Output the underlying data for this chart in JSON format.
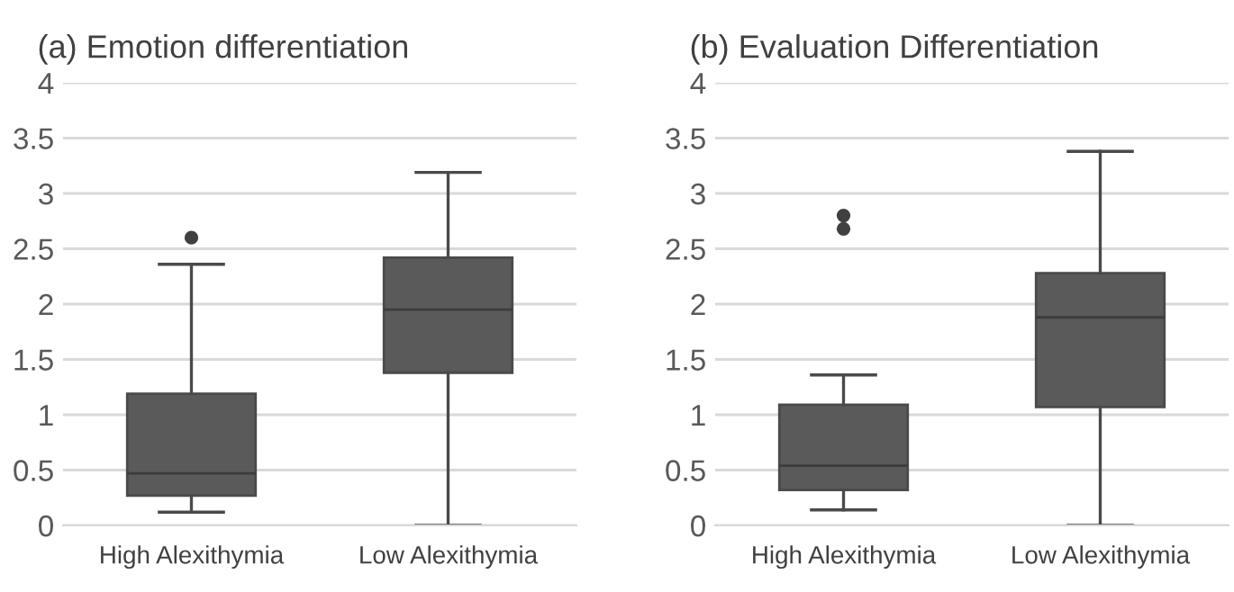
{
  "chart_data": [
    {
      "type": "box",
      "title": "(a) Emotion differentiation",
      "categories": [
        "High Alexithymia",
        "Low Alexithymia"
      ],
      "color": "#5a5a5a",
      "boxes": [
        {
          "low": 0.12,
          "q1": 0.27,
          "median": 0.47,
          "q3": 1.19,
          "high": 2.36,
          "outliers": [
            2.6
          ]
        },
        {
          "low": 0,
          "q1": 1.38,
          "median": 1.95,
          "q3": 2.42,
          "high": 3.19
        }
      ],
      "ylim": [
        0,
        4
      ],
      "yticks": [
        0,
        0.5,
        1,
        1.5,
        2,
        2.5,
        3,
        3.5,
        4
      ],
      "grid": "y"
    },
    {
      "type": "box",
      "title": "(b) Evaluation Differentiation",
      "categories": [
        "High Alexithymia",
        "Low Alexithymia"
      ],
      "color": "#5a5a5a",
      "boxes": [
        {
          "low": 0.14,
          "q1": 0.32,
          "median": 0.54,
          "q3": 1.09,
          "high": 1.36,
          "outliers": [
            2.68,
            2.8
          ]
        },
        {
          "low": 0,
          "q1": 1.07,
          "median": 1.88,
          "q3": 2.28,
          "high": 3.38
        }
      ],
      "ylim": [
        0,
        4
      ],
      "yticks": [
        0,
        0.5,
        1,
        1.5,
        2,
        2.5,
        3,
        3.5,
        4
      ],
      "grid": "y"
    }
  ]
}
